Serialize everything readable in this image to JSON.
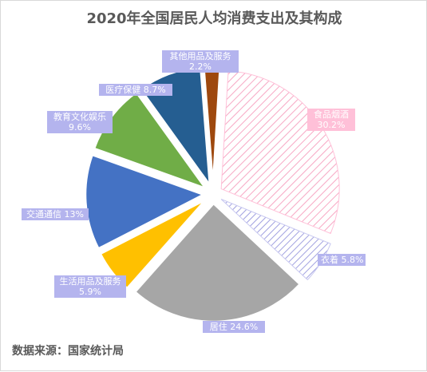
{
  "chart_data": {
    "type": "pie",
    "title": "2020年全国居民人均消费支出及其构成",
    "source": "数据来源：国家统计局",
    "slices": [
      {
        "name": "食品烟酒",
        "value": 30.2,
        "value_label": "30.2%",
        "color": "#ffc0d8",
        "pattern": "hatch-pink"
      },
      {
        "name": "衣着",
        "value": 5.8,
        "value_label": "5.8%",
        "color": "#c8c8f0",
        "pattern": "hatch-blue"
      },
      {
        "name": "居住",
        "value": 24.6,
        "value_label": "24.6%",
        "color": "#a6a6a6"
      },
      {
        "name": "生活用品及服务",
        "value": 5.9,
        "value_label": "5.9%",
        "color": "#ffc000"
      },
      {
        "name": "交通通信",
        "value": 13,
        "value_label": "13%",
        "color": "#4472c4"
      },
      {
        "name": "教育文化娱乐",
        "value": 9.6,
        "value_label": "9.6%",
        "color": "#70ad47"
      },
      {
        "name": "医疗保健",
        "value": 8.7,
        "value_label": "8.7%",
        "color": "#255e91"
      },
      {
        "name": "其他用品及服务",
        "value": 2.2,
        "value_label": "2.2%",
        "color": "#9e480e"
      }
    ],
    "legend": "none"
  }
}
